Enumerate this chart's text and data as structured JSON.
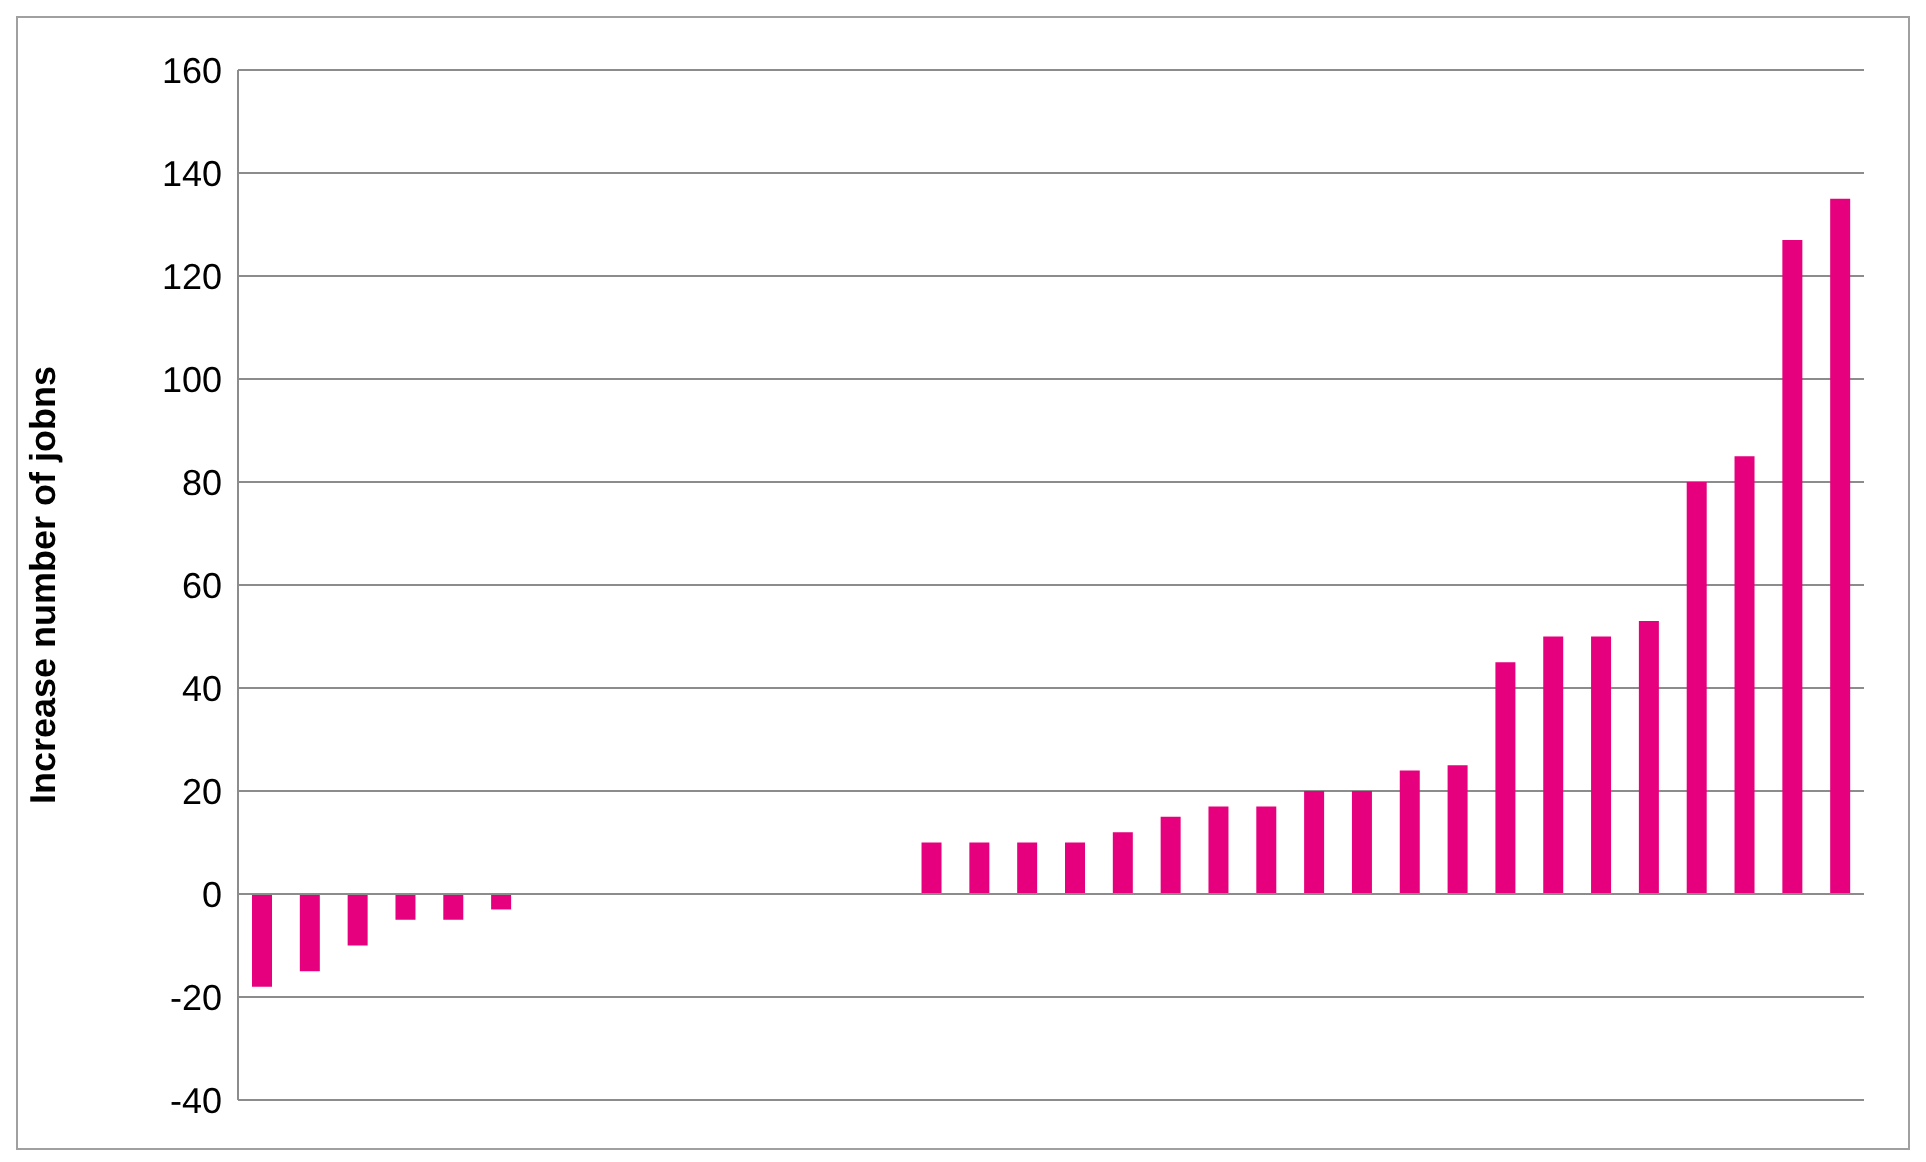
{
  "chart_data": {
    "type": "bar",
    "ylabel": "Increase number of jobns",
    "categories": [
      null,
      null,
      null,
      null,
      null,
      null,
      null,
      null,
      null,
      null,
      null,
      null,
      null,
      null,
      null,
      null,
      null,
      null,
      null,
      null,
      null,
      null,
      null,
      null,
      null,
      null,
      null,
      null,
      null,
      null,
      null,
      null,
      null,
      null
    ],
    "values": [
      -18,
      -15,
      -10,
      -5,
      -5,
      -3,
      0,
      0,
      0,
      0,
      0,
      0,
      0,
      0,
      10,
      10,
      10,
      10,
      12,
      15,
      17,
      17,
      20,
      20,
      24,
      25,
      45,
      50,
      50,
      53,
      80,
      85,
      127,
      135
    ],
    "color": "#e6007e",
    "ylim": [
      -40,
      160
    ],
    "yticks": [
      -40,
      -20,
      0,
      20,
      40,
      60,
      80,
      100,
      120,
      140,
      160
    ],
    "grid": "y"
  }
}
